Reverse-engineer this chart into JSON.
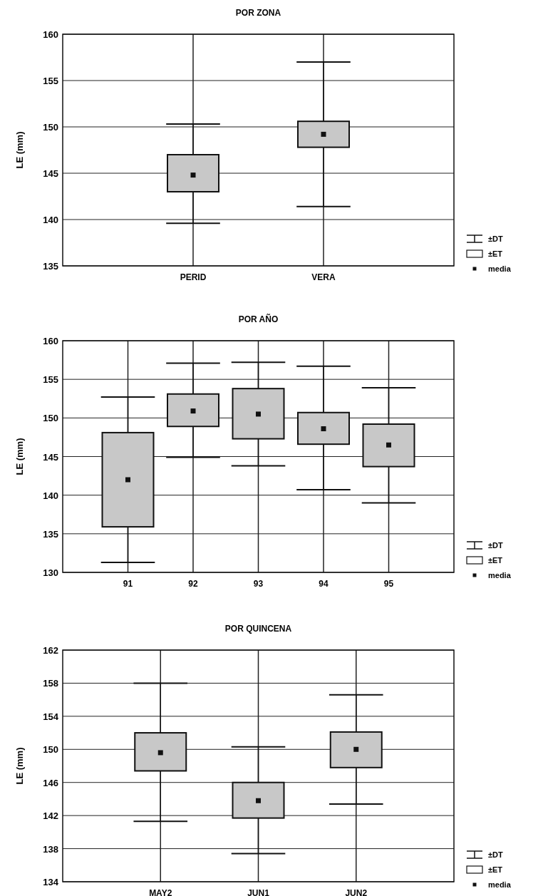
{
  "chart_data": [
    {
      "type": "box",
      "title": "POR ZONA",
      "ylabel": "LE (mm)",
      "categories": [
        "PERID",
        "VERA"
      ],
      "ylim": [
        135,
        160
      ],
      "yticks": [
        135,
        140,
        145,
        150,
        155,
        160
      ],
      "grid": true,
      "marker": "square",
      "annotations": [
        "±DT",
        "±ET",
        "media"
      ],
      "series": [
        {
          "color": "#c8c8c8",
          "boxes": [
            {
              "low": 139.6,
              "q1": 143,
              "median": 144.8,
              "q3": 147,
              "high": 150.3
            },
            {
              "low": 141.4,
              "q1": 147.8,
              "median": 149.2,
              "q3": 150.6,
              "high": 157
            }
          ]
        }
      ]
    },
    {
      "type": "box",
      "title": "POR AÑO",
      "ylabel": "LE (mm)",
      "categories": [
        "91",
        "92",
        "93",
        "94",
        "95"
      ],
      "ylim": [
        130,
        160
      ],
      "yticks": [
        130,
        135,
        140,
        145,
        150,
        155,
        160
      ],
      "grid": true,
      "marker": "square",
      "annotations": [
        "±DT",
        "±ET",
        "media"
      ],
      "series": [
        {
          "color": "#c8c8c8",
          "boxes": [
            {
              "low": 131.3,
              "q1": 135.9,
              "median": 142,
              "q3": 148.1,
              "high": 152.7
            },
            {
              "low": 144.9,
              "q1": 148.9,
              "median": 150.9,
              "q3": 153.1,
              "high": 157.1
            },
            {
              "low": 143.8,
              "q1": 147.3,
              "median": 150.5,
              "q3": 153.8,
              "high": 157.2
            },
            {
              "low": 140.7,
              "q1": 146.6,
              "median": 148.6,
              "q3": 150.7,
              "high": 156.7
            },
            {
              "low": 139,
              "q1": 143.7,
              "median": 146.5,
              "q3": 149.2,
              "high": 153.9
            }
          ]
        }
      ]
    },
    {
      "type": "box",
      "title": "POR QUINCENA",
      "ylabel": "LE (mm)",
      "categories": [
        "MAY2",
        "JUN1",
        "JUN2"
      ],
      "ylim": [
        134,
        162
      ],
      "yticks": [
        134,
        138,
        142,
        146,
        150,
        154,
        158,
        162
      ],
      "grid": true,
      "marker": "square",
      "annotations": [
        "±DT",
        "±ET",
        "media"
      ],
      "series": [
        {
          "color": "#c8c8c8",
          "boxes": [
            {
              "low": 141.3,
              "q1": 147.4,
              "median": 149.6,
              "q3": 152,
              "high": 158
            },
            {
              "low": 137.4,
              "q1": 141.7,
              "median": 143.8,
              "q3": 146,
              "high": 150.3
            },
            {
              "low": 143.4,
              "q1": 147.8,
              "median": 150,
              "q3": 152.1,
              "high": 156.6
            }
          ]
        }
      ]
    }
  ]
}
